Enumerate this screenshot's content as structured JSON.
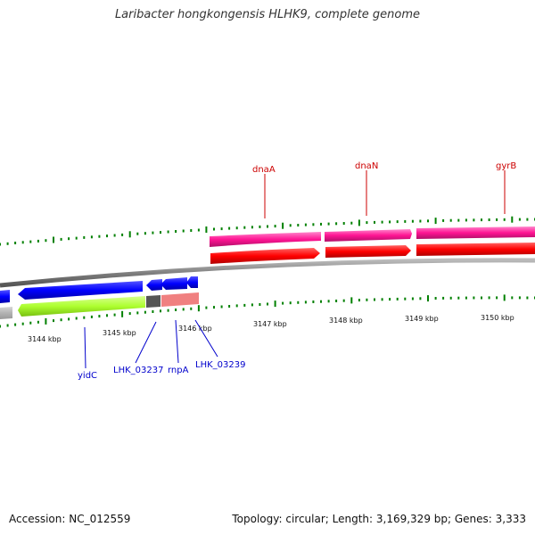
{
  "title": "Laribacter hongkongensis HLHK9, complete genome",
  "footer": {
    "accession": "Accession: NC_012559",
    "summary": "Topology: circular; Length: 3,169,329 bp; Genes: 3,333"
  },
  "colors": {
    "forward_gene": "#ff0000",
    "forward_cds": "#ff1493",
    "reverse_gene": "#0000ff",
    "reverse_cds": "#adff2f",
    "backbone": "#808080",
    "tick": "#008000",
    "label_forward": "#cc0000",
    "label_reverse": "#0000cc"
  },
  "kbp_labels": [
    "3144 kbp",
    "3145 kbp",
    "3146 kbp",
    "3147 kbp",
    "3148 kbp",
    "3149 kbp",
    "3150 kbp"
  ],
  "forward_labels": [
    "dnaA",
    "dnaN",
    "gyrB"
  ],
  "reverse_labels": [
    "yidC",
    "LHK_03237",
    "rnpA",
    "LHK_03239"
  ]
}
